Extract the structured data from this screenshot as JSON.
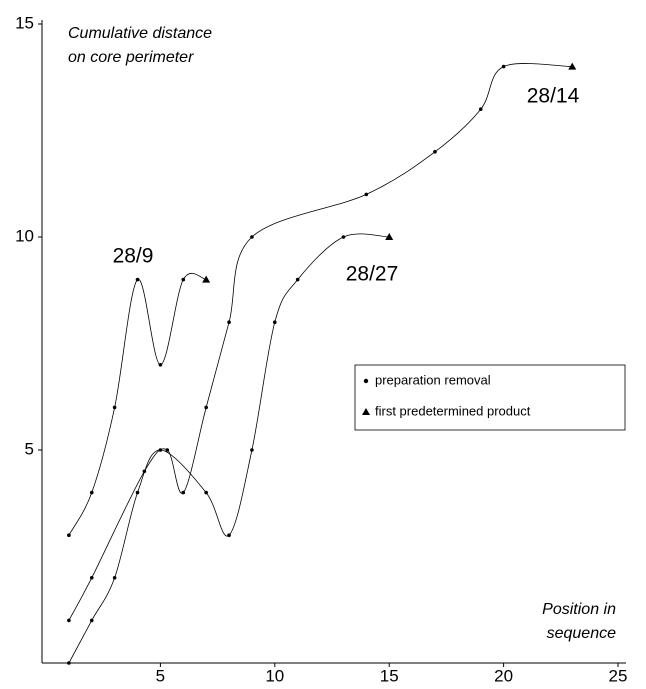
{
  "chart_data": {
    "type": "line",
    "y_label": [
      "Cumulative distance",
      "on core perimeter"
    ],
    "x_label": [
      "Position in",
      "sequence"
    ],
    "xlim": [
      0,
      25
    ],
    "xticks": [
      5,
      10,
      15,
      20,
      25
    ],
    "ylim": [
      0,
      15
    ],
    "yticks": [
      5,
      10,
      15
    ],
    "series": [
      {
        "name": "28/9",
        "color": "#000000",
        "x": [
          1,
          2,
          3,
          4,
          5,
          6,
          7
        ],
        "values": [
          3,
          4,
          6,
          9,
          7,
          9,
          9
        ]
      },
      {
        "name": "28/14",
        "color": "#000000",
        "x": [
          1,
          2,
          4.3,
          5.3,
          6,
          7,
          8,
          9,
          14,
          17,
          19,
          20,
          23
        ],
        "values": [
          1,
          2,
          4.5,
          5,
          4,
          6,
          8,
          10,
          11,
          12,
          13,
          14,
          14
        ]
      },
      {
        "name": "28/27",
        "color": "#000000",
        "x": [
          1,
          2,
          3,
          4,
          5,
          7,
          8,
          9,
          10,
          11,
          13,
          15
        ],
        "values": [
          0,
          1,
          2,
          4,
          5,
          4,
          3,
          5,
          8,
          9,
          10,
          10
        ]
      }
    ],
    "legend_items": [
      "preparation removal",
      "first predetermined product"
    ]
  }
}
